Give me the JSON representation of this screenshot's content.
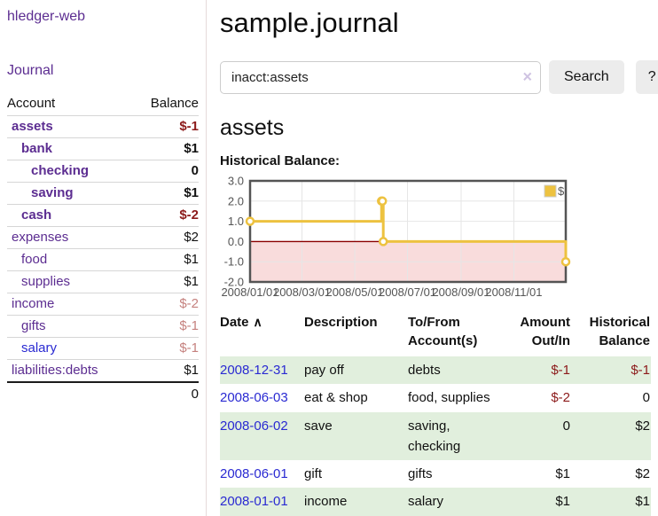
{
  "sidebar": {
    "brand": "hledger-web",
    "journal_label": "Journal",
    "table": {
      "account_header": "Account",
      "balance_header": "Balance",
      "accounts": [
        {
          "name": "assets",
          "depth": 1,
          "bold": true,
          "balance": "$-1",
          "negative": "strong"
        },
        {
          "name": "bank",
          "depth": 2,
          "bold": true,
          "balance": "$1"
        },
        {
          "name": "checking",
          "depth": 3,
          "bold": true,
          "balance": "0"
        },
        {
          "name": "saving",
          "depth": 3,
          "bold": true,
          "balance": "$1"
        },
        {
          "name": "cash",
          "depth": 2,
          "bold": true,
          "balance": "$-2",
          "negative": "strong"
        },
        {
          "name": "expenses",
          "depth": 1,
          "bold": false,
          "balance": "$2"
        },
        {
          "name": "food",
          "depth": 2,
          "bold": false,
          "balance": "$1"
        },
        {
          "name": "supplies",
          "depth": 2,
          "bold": false,
          "balance": "$1"
        },
        {
          "name": "income",
          "depth": 1,
          "bold": false,
          "balance": "$-2",
          "negative": "soft"
        },
        {
          "name": "gifts",
          "depth": 2,
          "bold": false,
          "balance": "$-1",
          "negative": "soft"
        },
        {
          "name": "salary",
          "depth": 2,
          "bold": false,
          "balance": "$-1",
          "negative": "soft",
          "blue": true
        },
        {
          "name": "liabilities:debts",
          "depth": 1,
          "bold": false,
          "balance": "$1"
        }
      ],
      "total": "0"
    }
  },
  "main": {
    "title": "sample.journal",
    "search": {
      "value": "inacct:assets",
      "button_label": "Search",
      "help_label": "?"
    },
    "account_heading": "assets",
    "chart_label": "Historical Balance:",
    "register": {
      "headers": [
        {
          "label": "Date",
          "sorted": "asc"
        },
        {
          "label": "Description"
        },
        {
          "label": "To/From Account(s)"
        },
        {
          "label": "Amount Out/In"
        },
        {
          "label": "Historical Balance"
        }
      ],
      "rows": [
        {
          "date": "2008-12-31",
          "description": "pay off",
          "accounts": "debts",
          "amount": "$-1",
          "balance": "$-1"
        },
        {
          "date": "2008-06-03",
          "description": "eat & shop",
          "accounts": "food, supplies",
          "amount": "$-2",
          "balance": "0"
        },
        {
          "date": "2008-06-02",
          "description": "save",
          "accounts": "saving, checking",
          "amount": "0",
          "balance": "$2"
        },
        {
          "date": "2008-06-01",
          "description": "gift",
          "accounts": "gifts",
          "amount": "$1",
          "balance": "$2"
        },
        {
          "date": "2008-01-01",
          "description": "income",
          "accounts": "salary",
          "amount": "$1",
          "balance": "$1"
        }
      ]
    }
  },
  "icons": {
    "sort_asc": "∧",
    "clear": "×"
  },
  "colors": {
    "link_purple": "#5c2d91",
    "link_blue": "#2a2ad2",
    "negative_strong": "#8c1a1a",
    "negative_soft": "#c5817e",
    "row_green": "#e1efdd",
    "series_gold": "#edc240",
    "chart_frame": "#545454",
    "negative_zone": "#f9dcdc",
    "zero_line": "#8b0000",
    "gridline": "#e6e6e6"
  },
  "chart_data": {
    "type": "line",
    "step": true,
    "title": "Historical Balance:",
    "series": [
      {
        "name": "$",
        "color": "#edc240",
        "points": [
          [
            "2008-01-01",
            1
          ],
          [
            "2008-06-01",
            2
          ],
          [
            "2008-06-02",
            2
          ],
          [
            "2008-06-03",
            0
          ],
          [
            "2008-12-31",
            -1
          ]
        ]
      }
    ],
    "xlim": [
      "2008-01-01",
      "2008-12-31"
    ],
    "ylim": [
      -2,
      3
    ],
    "x_ticks": [
      {
        "date": "2008-01-01",
        "label": "2008/01/01"
      },
      {
        "date": "2008-03-01",
        "label": "2008/03/01"
      },
      {
        "date": "2008-05-01",
        "label": "2008/05/01"
      },
      {
        "date": "2008-07-01",
        "label": "2008/07/01"
      },
      {
        "date": "2008-09-01",
        "label": "2008/09/01"
      },
      {
        "date": "2008-11-01",
        "label": "2008/11/01"
      }
    ],
    "y_ticks": [
      {
        "value": 3,
        "label": "3.0"
      },
      {
        "value": 2,
        "label": "2.0"
      },
      {
        "value": 1,
        "label": "1.0"
      },
      {
        "value": 0,
        "label": "0.0"
      },
      {
        "value": -1,
        "label": "-1.0"
      },
      {
        "value": -2,
        "label": "-2.0"
      }
    ],
    "legend": {
      "label": "$",
      "position": "top-right"
    },
    "grid": true,
    "negative_region": {
      "from": 0,
      "to": -2
    }
  }
}
